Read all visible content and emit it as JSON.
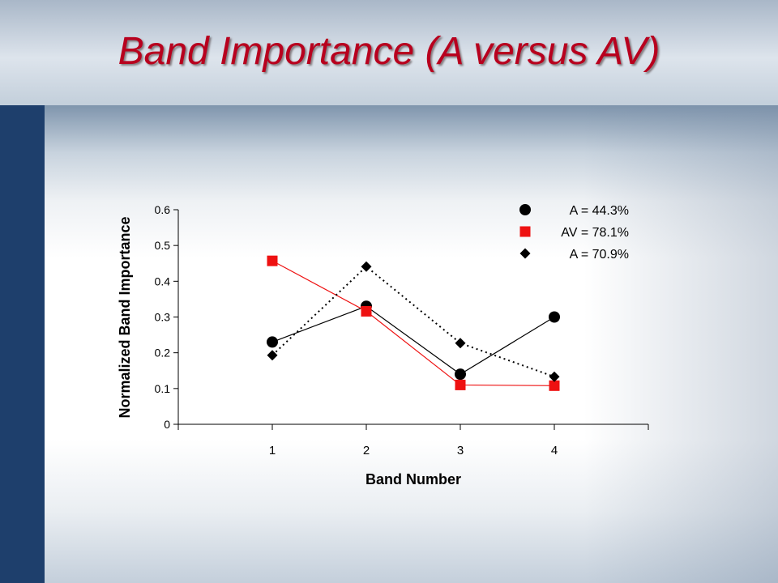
{
  "slide": {
    "title": "Band Importance (A versus AV)"
  },
  "chart_data": {
    "type": "line",
    "title": "",
    "xlabel": "Band Number",
    "ylabel": "Normalized Band Importance",
    "categories": [
      "1",
      "2",
      "3",
      "4"
    ],
    "ylim": [
      0,
      0.6
    ],
    "yticks": [
      "0",
      "0.1",
      "0.2",
      "0.3",
      "0.4",
      "0.5",
      "0.6"
    ],
    "grid": false,
    "legend_position": "top-right",
    "series": [
      {
        "name": "A = 44.3%",
        "values": [
          0.23,
          0.33,
          0.14,
          0.3
        ],
        "marker": "circle",
        "line_style": "solid",
        "color": "#000000"
      },
      {
        "name": "AV = 78.1%",
        "values": [
          0.457,
          0.316,
          0.11,
          0.108
        ],
        "marker": "square",
        "line_style": "solid",
        "color": "#ee1111"
      },
      {
        "name": "A = 70.9%",
        "values": [
          0.193,
          0.441,
          0.227,
          0.133
        ],
        "marker": "diamond",
        "line_style": "dotted",
        "color": "#000000"
      }
    ]
  }
}
